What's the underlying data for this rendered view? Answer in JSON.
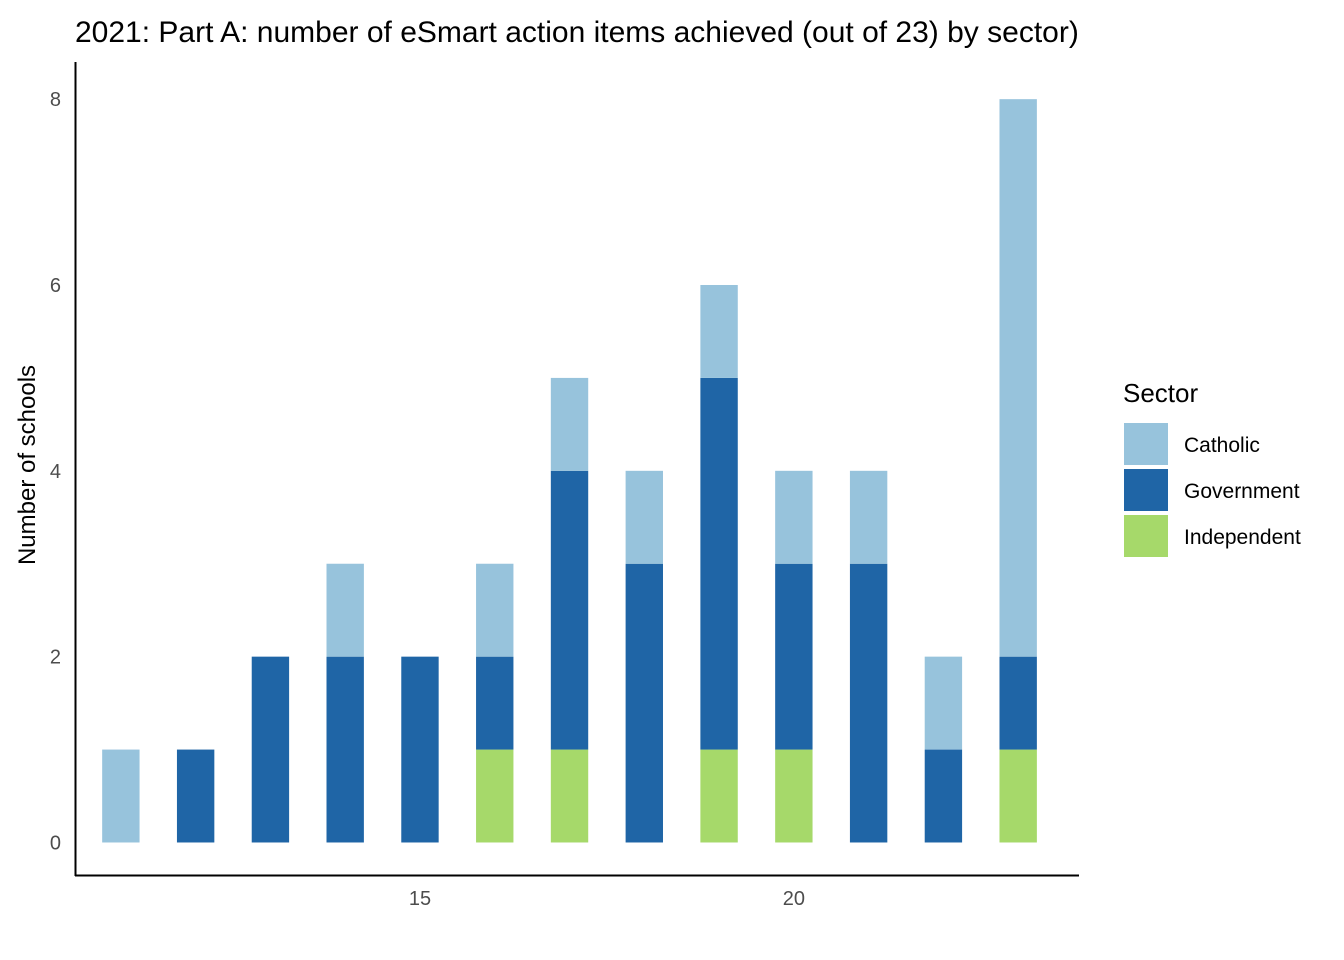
{
  "chart_data": {
    "type": "bar",
    "stacked": true,
    "title": "2021: Part A: number of eSmart action items achieved (out of 23) by sector)",
    "xlabel": "",
    "ylabel": "Number of schools",
    "x": [
      11,
      12,
      13,
      14,
      15,
      16,
      17,
      18,
      19,
      20,
      21,
      22,
      23
    ],
    "xlim": [
      10.4,
      23.8
    ],
    "ylim": [
      -0.35,
      8.4
    ],
    "x_ticks": [
      15,
      20
    ],
    "y_ticks": [
      0,
      2,
      4,
      6,
      8
    ],
    "grid": false,
    "legend": {
      "title": "Sector",
      "position": "right"
    },
    "series": [
      {
        "name": "Independent",
        "color": "#a6d96a",
        "values": [
          0,
          0,
          0,
          0,
          0,
          1,
          1,
          0,
          1,
          1,
          0,
          0,
          1
        ]
      },
      {
        "name": "Government",
        "color": "#1f65a6",
        "values": [
          0,
          1,
          2,
          2,
          2,
          1,
          3,
          3,
          4,
          2,
          3,
          1,
          1
        ]
      },
      {
        "name": "Catholic",
        "color": "#97c3dc",
        "values": [
          1,
          0,
          0,
          1,
          0,
          1,
          1,
          1,
          1,
          1,
          1,
          1,
          6
        ]
      }
    ],
    "legend_order": [
      "Catholic",
      "Government",
      "Independent"
    ]
  }
}
